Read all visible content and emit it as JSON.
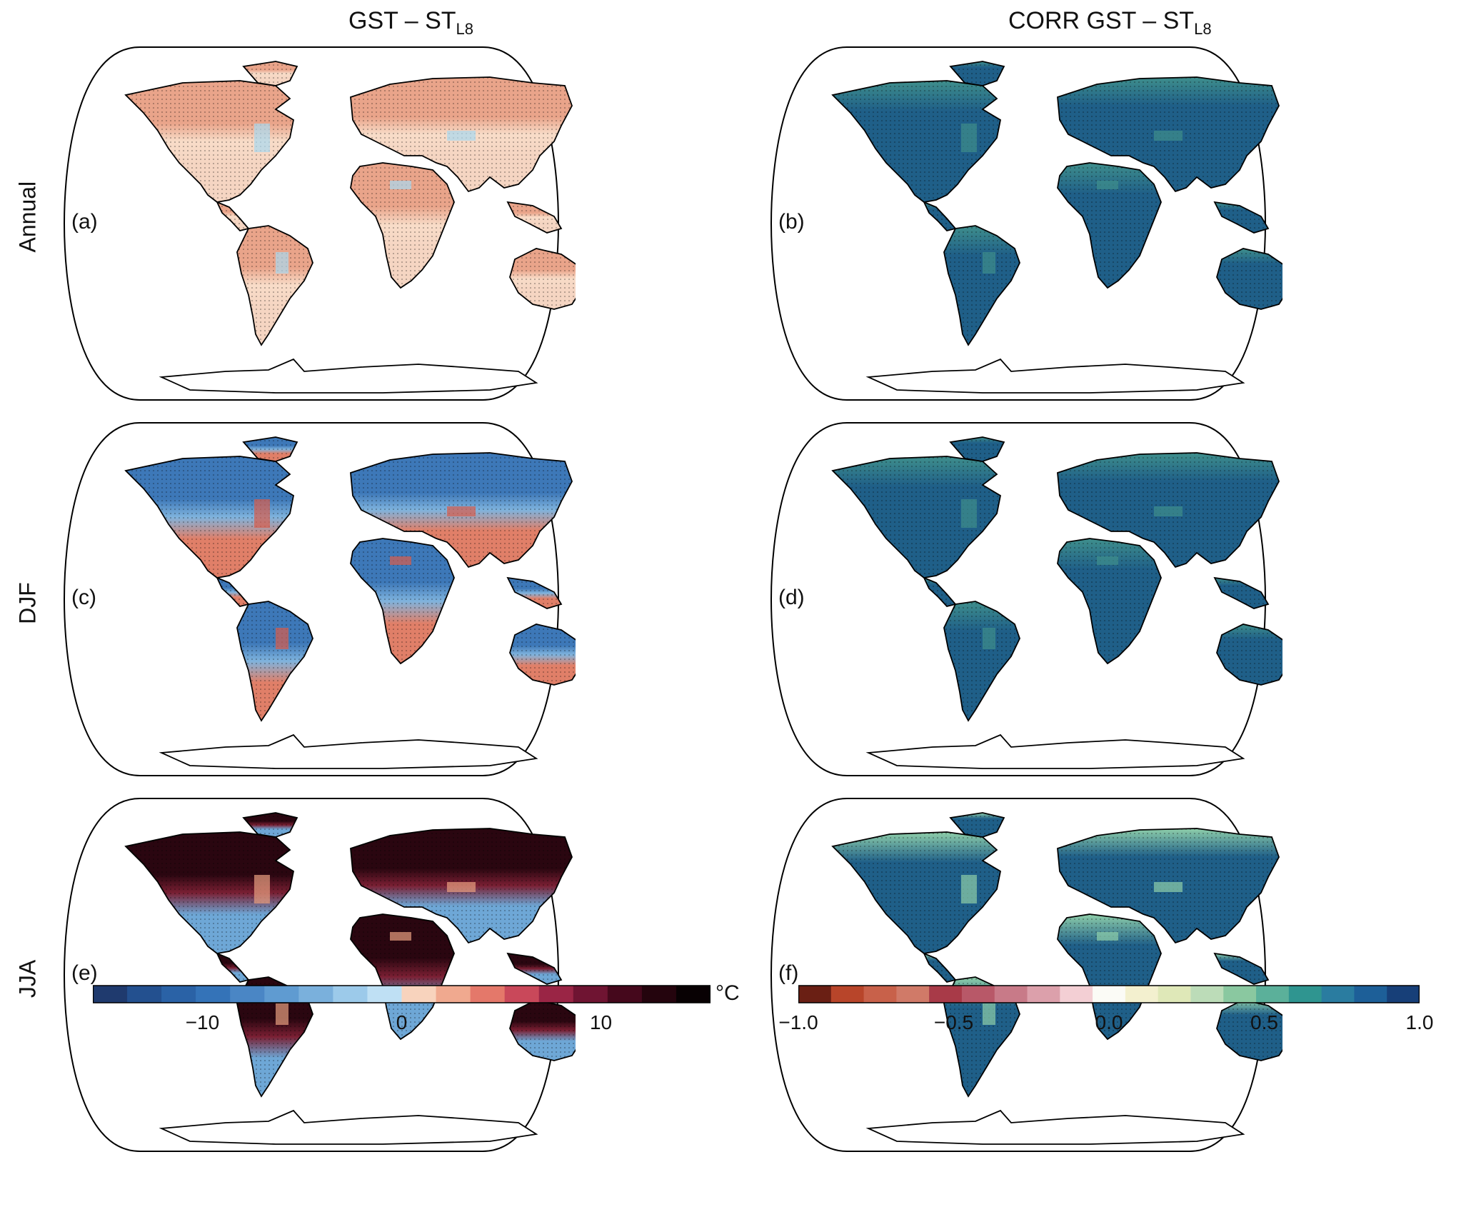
{
  "titles": {
    "left_main": "GST – ST",
    "left_sub": "L8",
    "right_main": "CORR  GST – ST",
    "right_sub": "L8"
  },
  "rows": [
    {
      "label": "Annual",
      "left_panel": "(a)",
      "right_panel": "(b)",
      "left_colors": {
        "north": "#e9a48a",
        "mid": "#f8dcc8",
        "south": "#f5d5c2",
        "patch": "#a9d8f0"
      },
      "right_colors": {
        "base": "#1f5f88",
        "hi": "#3f8f8c"
      }
    },
    {
      "label": "DJF",
      "left_panel": "(c)",
      "right_panel": "(d)",
      "left_colors": {
        "north": "#3d78b8",
        "mid": "#7fb3dd",
        "south": "#e07f68",
        "patch": "#d95c4c"
      },
      "right_colors": {
        "base": "#1f5f88",
        "hi": "#3f8f8c"
      }
    },
    {
      "label": "JJA",
      "left_panel": "(e)",
      "right_panel": "(f)",
      "left_colors": {
        "north": "#2a0610",
        "mid": "#7a1f33",
        "south": "#6ea7d6",
        "patch": "#e8a080"
      },
      "right_colors": {
        "base": "#1f5f88",
        "hi": "#8fcfaa"
      }
    }
  ],
  "colorbars": {
    "left": {
      "ticks": [
        "−10",
        "0",
        "10"
      ],
      "tick_values": [
        -10,
        0,
        10
      ],
      "range": [
        -15.5,
        15.5
      ],
      "unit": "°C",
      "colors": [
        "#1f3a6e",
        "#23508f",
        "#2a62a6",
        "#3473b8",
        "#4a86c5",
        "#5f9bd1",
        "#7ab0dc",
        "#9ccaea",
        "#bfe0f4",
        "#f8d3bd",
        "#f0a98f",
        "#e4786a",
        "#c9485a",
        "#9a2545",
        "#6f1432",
        "#45081c",
        "#24040d",
        "#080103"
      ]
    },
    "right": {
      "ticks": [
        "−1.0",
        "−0.5",
        "0.0",
        "0.5",
        "1.0"
      ],
      "tick_values": [
        -1.0,
        -0.5,
        0.0,
        0.5,
        1.0
      ],
      "range": [
        -1.0,
        1.0
      ],
      "colors": [
        "#6a1f14",
        "#b8452a",
        "#c8614a",
        "#d07a68",
        "#a83a48",
        "#b85868",
        "#c87a88",
        "#dca0ab",
        "#f3cfd4",
        "#fbfbf6",
        "#f3f0cf",
        "#dfe8b8",
        "#bcdcb8",
        "#8ac8a0",
        "#5bb09a",
        "#2f9590",
        "#2a7ca0",
        "#1d5f98",
        "#173f78"
      ]
    }
  }
}
